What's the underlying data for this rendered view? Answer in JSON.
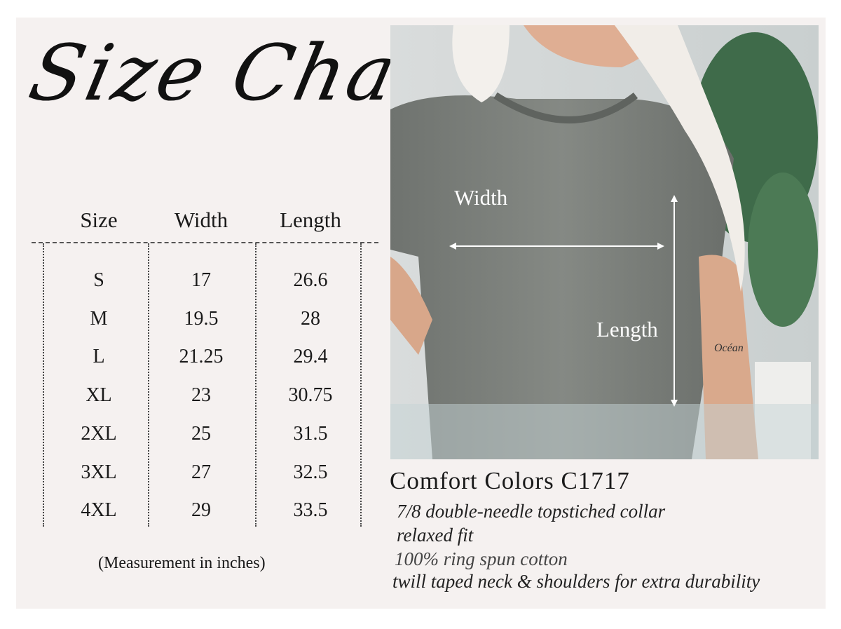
{
  "title": "Size Chart",
  "table": {
    "headers": [
      "Size",
      "Width",
      "Length"
    ],
    "rows": [
      [
        "S",
        "17",
        "26.6"
      ],
      [
        "M",
        "19.5",
        "28"
      ],
      [
        "L",
        "21.25",
        "29.4"
      ],
      [
        "XL",
        "23",
        "30.75"
      ],
      [
        "2XL",
        "25",
        "31.5"
      ],
      [
        "3XL",
        "27",
        "32.5"
      ],
      [
        "4XL",
        "29",
        "33.5"
      ]
    ],
    "note": "(Measurement in inches)"
  },
  "photo": {
    "width_label": "Width",
    "length_label": "Length",
    "shirt_color": "#7b7f7b",
    "tattoo_text": "Océan"
  },
  "product": {
    "name": "Comfort Colors C1717",
    "features": [
      "7/8 double-needle topstiched collar",
      "relaxed fit",
      "100% ring spun cotton",
      "twill taped neck & shoulders for extra durability"
    ]
  }
}
